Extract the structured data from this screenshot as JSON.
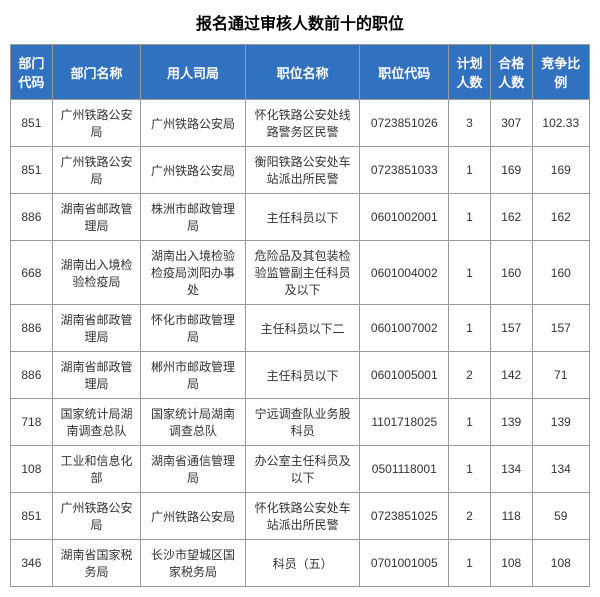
{
  "title": "报名通过审核人数前十的职位",
  "columns": [
    "部门代码",
    "部门名称",
    "用人司局",
    "职位名称",
    "职位代码",
    "计划人数",
    "合格人数",
    "竞争比例"
  ],
  "rows": [
    {
      "code": "851",
      "dept": "广州铁路公安局",
      "bureau": "广州铁路公安局",
      "pos": "怀化铁路公安处线路警务区民警",
      "poscode": "0723851026",
      "plan": "3",
      "pass": "307",
      "ratio": "102.33"
    },
    {
      "code": "851",
      "dept": "广州铁路公安局",
      "bureau": "广州铁路公安局",
      "pos": "衡阳铁路公安处车站派出所民警",
      "poscode": "0723851033",
      "plan": "1",
      "pass": "169",
      "ratio": "169"
    },
    {
      "code": "886",
      "dept": "湖南省邮政管理局",
      "bureau": "株洲市邮政管理局",
      "pos": "主任科员以下",
      "poscode": "0601002001",
      "plan": "1",
      "pass": "162",
      "ratio": "162"
    },
    {
      "code": "668",
      "dept": "湖南出入境检验检疫局",
      "bureau": "湖南出入境检验检疫局浏阳办事处",
      "pos": "危险品及其包装检验监管副主任科员及以下",
      "poscode": "0601004002",
      "plan": "1",
      "pass": "160",
      "ratio": "160"
    },
    {
      "code": "886",
      "dept": "湖南省邮政管理局",
      "bureau": "怀化市邮政管理局",
      "pos": "主任科员以下二",
      "poscode": "0601007002",
      "plan": "1",
      "pass": "157",
      "ratio": "157"
    },
    {
      "code": "886",
      "dept": "湖南省邮政管理局",
      "bureau": "郴州市邮政管理局",
      "pos": "主任科员以下",
      "poscode": "0601005001",
      "plan": "2",
      "pass": "142",
      "ratio": "71"
    },
    {
      "code": "718",
      "dept": "国家统计局湖南调查总队",
      "bureau": "国家统计局湖南调查总队",
      "pos": "宁远调查队业务股科员",
      "poscode": "1101718025",
      "plan": "1",
      "pass": "139",
      "ratio": "139"
    },
    {
      "code": "108",
      "dept": "工业和信息化部",
      "bureau": "湖南省通信管理局",
      "pos": "办公室主任科员及以下",
      "poscode": "0501118001",
      "plan": "1",
      "pass": "134",
      "ratio": "134"
    },
    {
      "code": "851",
      "dept": "广州铁路公安局",
      "bureau": "广州铁路公安局",
      "pos": "怀化铁路公安处车站派出所民警",
      "poscode": "0723851025",
      "plan": "2",
      "pass": "118",
      "ratio": "59"
    },
    {
      "code": "346",
      "dept": "湖南省国家税务局",
      "bureau": "长沙市望城区国家税务局",
      "pos": "科员（五）",
      "poscode": "0701001005",
      "plan": "1",
      "pass": "108",
      "ratio": "108"
    }
  ],
  "styling": {
    "header_bg": "#3172c0",
    "header_fg": "#ffffff",
    "border_color": "#999999",
    "cell_font_size": 12,
    "header_font_size": 13,
    "title_font_size": 16
  }
}
